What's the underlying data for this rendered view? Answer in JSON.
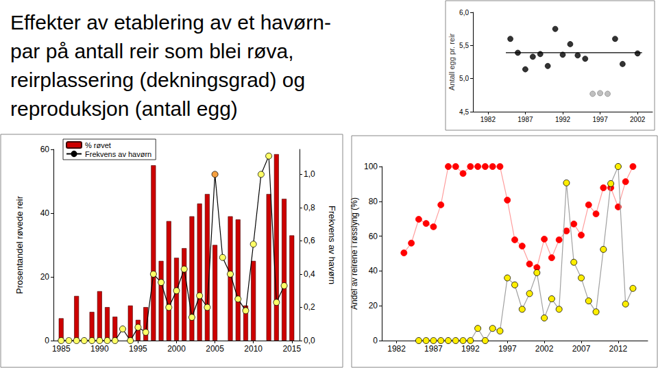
{
  "title": "Effekter av etablering av et havørn-\npar på antall reir som blei røva,\nreirplassering (dekningsgrad) og\nreproduksjon (antall egg)",
  "chart_data": [
    {
      "type": "scatter",
      "ylabel": "Antall egg pr. reir",
      "xlim": [
        1980,
        2004
      ],
      "xticks": [
        1982,
        1987,
        1992,
        1997,
        2002
      ],
      "ylim": [
        4.5,
        6.0
      ],
      "yticks": [
        {
          "value": 4.5,
          "label": "4,5"
        },
        {
          "value": 5.0,
          "label": "5,0"
        },
        {
          "value": 5.5,
          "label": "5,5"
        },
        {
          "value": 6.0,
          "label": "6,0"
        }
      ],
      "grid": false,
      "series": [
        {
          "x": [
            1985,
            1986,
            1987,
            1988,
            1989,
            1990,
            1991,
            1992,
            1993,
            1994,
            1995,
            1999,
            2000,
            2002
          ],
          "values": [
            5.6,
            5.39,
            5.14,
            5.33,
            5.37,
            5.19,
            5.75,
            5.36,
            5.52,
            5.35,
            5.3,
            5.6,
            5.22,
            5.38
          ],
          "color": "#000000",
          "marker": "circle"
        },
        {
          "x": [
            1996,
            1997,
            1998
          ],
          "values": [
            4.77,
            4.78,
            4.77
          ],
          "color": "#b0b0b0",
          "marker": "circle"
        },
        {
          "type": "line",
          "x": [
            1984.4,
            2002.6
          ],
          "values": [
            5.39,
            5.39
          ],
          "color": "#000000",
          "marker": "none",
          "line_style": "solid"
        }
      ]
    },
    {
      "type": "bar",
      "ylabel": "Prosentandel røvede reir",
      "y2label": "Frekvens av havørn",
      "xlim": [
        1984,
        2016
      ],
      "xticks": [
        1985,
        1990,
        1995,
        2000,
        2005,
        2010,
        2015
      ],
      "ylim": [
        0,
        60
      ],
      "yticks": [
        0,
        20,
        40,
        60
      ],
      "y2lim": [
        0,
        1.15
      ],
      "y2ticks": [
        {
          "value": 0,
          "label": "0,0"
        },
        {
          "value": 0.2,
          "label": "0,2"
        },
        {
          "value": 0.4,
          "label": "0,4"
        },
        {
          "value": 0.6,
          "label": "0,6"
        },
        {
          "value": 0.8,
          "label": "0,8"
        },
        {
          "value": 1.0,
          "label": "1,0"
        }
      ],
      "grid": false,
      "legend": "upper left",
      "x": [
        1985,
        1986,
        1987,
        1988,
        1989,
        1990,
        1991,
        1992,
        1993,
        1994,
        1995,
        1996,
        1997,
        1998,
        1999,
        2000,
        2001,
        2002,
        2003,
        2004,
        2005,
        2006,
        2007,
        2008,
        2009,
        2010,
        2011,
        2012,
        2013,
        2014,
        2015
      ],
      "series": [
        {
          "name": "% røvet",
          "type": "bar",
          "color": "#cc0000",
          "values": [
            7,
            null,
            14,
            null,
            9,
            15.5,
            10.5,
            7.5,
            null,
            11,
            6.5,
            10.5,
            55,
            25,
            37.5,
            26,
            29,
            39,
            43,
            46,
            30,
            null,
            39,
            38,
            11,
            25,
            null,
            46,
            58.5,
            44.5,
            33
          ]
        },
        {
          "name": "Frekvens av havørn",
          "type": "line",
          "axis": "y2",
          "color": "#000000",
          "marker": "circle",
          "line_style": "solid",
          "values": [
            0,
            0,
            0,
            0,
            0,
            0,
            0,
            0,
            0.07,
            0,
            0.08,
            0.05,
            0.4,
            0.35,
            0.2,
            0.3,
            0.43,
            0.14,
            0.27,
            0.2,
            1.0,
            0.5,
            0.4,
            0.25,
            0.18,
            0.58,
            1.0,
            1.11,
            0.23,
            0.33,
            null
          ],
          "colors": [
            "#ffff66",
            "#ffff66",
            "#ffff66",
            "#ffff66",
            "#ffff66",
            "#ffff66",
            "#ffff66",
            "#ffff66",
            "#ffff66",
            "#ffff66",
            "#ffff66",
            "#ffff66",
            "#ffff66",
            "#ffff66",
            "#ffff66",
            "#ffff66",
            "#ffff66",
            "#ffff66",
            "#ffff66",
            "#ffff66",
            "#f5a040",
            "#ffff66",
            "#ffff66",
            "#ffff66",
            "#ffff66",
            "#ffff66",
            "#ffff66",
            "#ffff66",
            "#ffff66",
            "#ffff66",
            "#ffff66"
          ]
        }
      ]
    },
    {
      "type": "line",
      "ylabel": "Andel av reirene i røsslyng (%)",
      "xlim": [
        1980,
        2016
      ],
      "xticks": [
        1982,
        1987,
        1992,
        1997,
        2002,
        2007,
        2012
      ],
      "ylim": [
        0,
        100
      ],
      "yticks": [
        0,
        20,
        40,
        60,
        80,
        100
      ],
      "grid": false,
      "x": [
        1983,
        1984,
        1985,
        1986,
        1987,
        1988,
        1989,
        1990,
        1991,
        1992,
        1993,
        1994,
        1995,
        1996,
        1997,
        1998,
        1999,
        2000,
        2001,
        2002,
        2003,
        2004,
        2005,
        2006,
        2007,
        2008,
        2009,
        2010,
        2011,
        2012,
        2013,
        2014
      ],
      "series": [
        {
          "color": "#ff0000",
          "marker": "circle",
          "line_style": "solid",
          "values": [
            50.4,
            56,
            69.7,
            67.3,
            65.4,
            78,
            100,
            100,
            96,
            100,
            100,
            100,
            100,
            100,
            80.7,
            57.9,
            54.3,
            44,
            42,
            58.3,
            47.6,
            57.9,
            63,
            67,
            60.6,
            78,
            72.8,
            87.8,
            87.8,
            76.8,
            91.3,
            100
          ]
        },
        {
          "color": "#ffee00",
          "marker": "circle",
          "line_style": "solid",
          "values": [
            null,
            null,
            0,
            0,
            0,
            0,
            0,
            0,
            0,
            0,
            7,
            0,
            7,
            5.5,
            36,
            32,
            18,
            27,
            39,
            13,
            24,
            18,
            90.6,
            45,
            36,
            22.8,
            16.5,
            52.4,
            90.2,
            100,
            21,
            30
          ]
        }
      ]
    }
  ]
}
